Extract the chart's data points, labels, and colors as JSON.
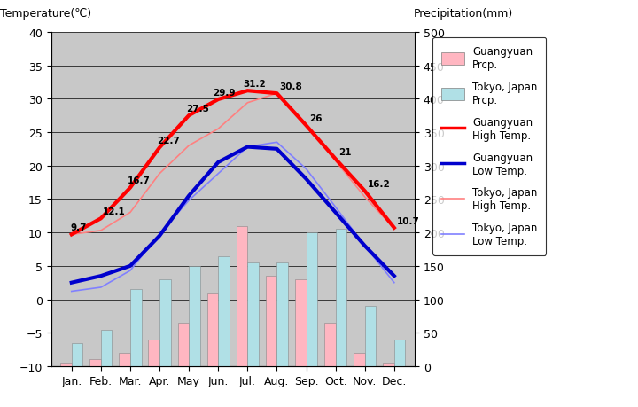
{
  "months": [
    "Jan.",
    "Feb.",
    "Mar.",
    "Apr.",
    "May",
    "Jun.",
    "Jul.",
    "Aug.",
    "Sep.",
    "Oct.",
    "Nov.",
    "Dec."
  ],
  "guangyuan_high_temp": [
    9.7,
    12.1,
    16.7,
    22.7,
    27.5,
    29.9,
    31.2,
    30.8,
    26.0,
    21.0,
    16.2,
    10.7
  ],
  "guangyuan_low_temp": [
    2.5,
    3.5,
    5.0,
    9.5,
    15.5,
    20.5,
    22.8,
    22.5,
    18.0,
    13.0,
    8.0,
    3.5
  ],
  "tokyo_high_temp": [
    9.7,
    10.3,
    13.0,
    18.8,
    23.0,
    25.5,
    29.4,
    30.8,
    26.2,
    20.7,
    15.3,
    10.6
  ],
  "tokyo_low_temp": [
    1.2,
    1.8,
    4.3,
    9.8,
    14.8,
    18.8,
    22.8,
    23.5,
    19.5,
    13.8,
    8.0,
    2.5
  ],
  "guangyuan_prcp_mm": [
    5,
    10,
    20,
    40,
    65,
    110,
    210,
    135,
    130,
    65,
    20,
    5
  ],
  "tokyo_prcp_mm": [
    35,
    55,
    115,
    130,
    150,
    165,
    155,
    155,
    200,
    205,
    90,
    40
  ],
  "guangyuan_high_labels": [
    "9.7",
    "12.1",
    "16.7",
    "22.7",
    "27.5",
    "29.9",
    "31.2",
    "30.8",
    "26",
    "21",
    "16.2",
    "10.7"
  ],
  "bg_color": "#c8c8c8",
  "guangyuan_prcp_color": "#ffb6c1",
  "tokyo_prcp_color": "#b0e0e6",
  "guangyuan_high_color": "#ff0000",
  "guangyuan_low_color": "#0000cd",
  "tokyo_high_color": "#ff8080",
  "tokyo_low_color": "#8080ff",
  "grid_color": "#000000"
}
